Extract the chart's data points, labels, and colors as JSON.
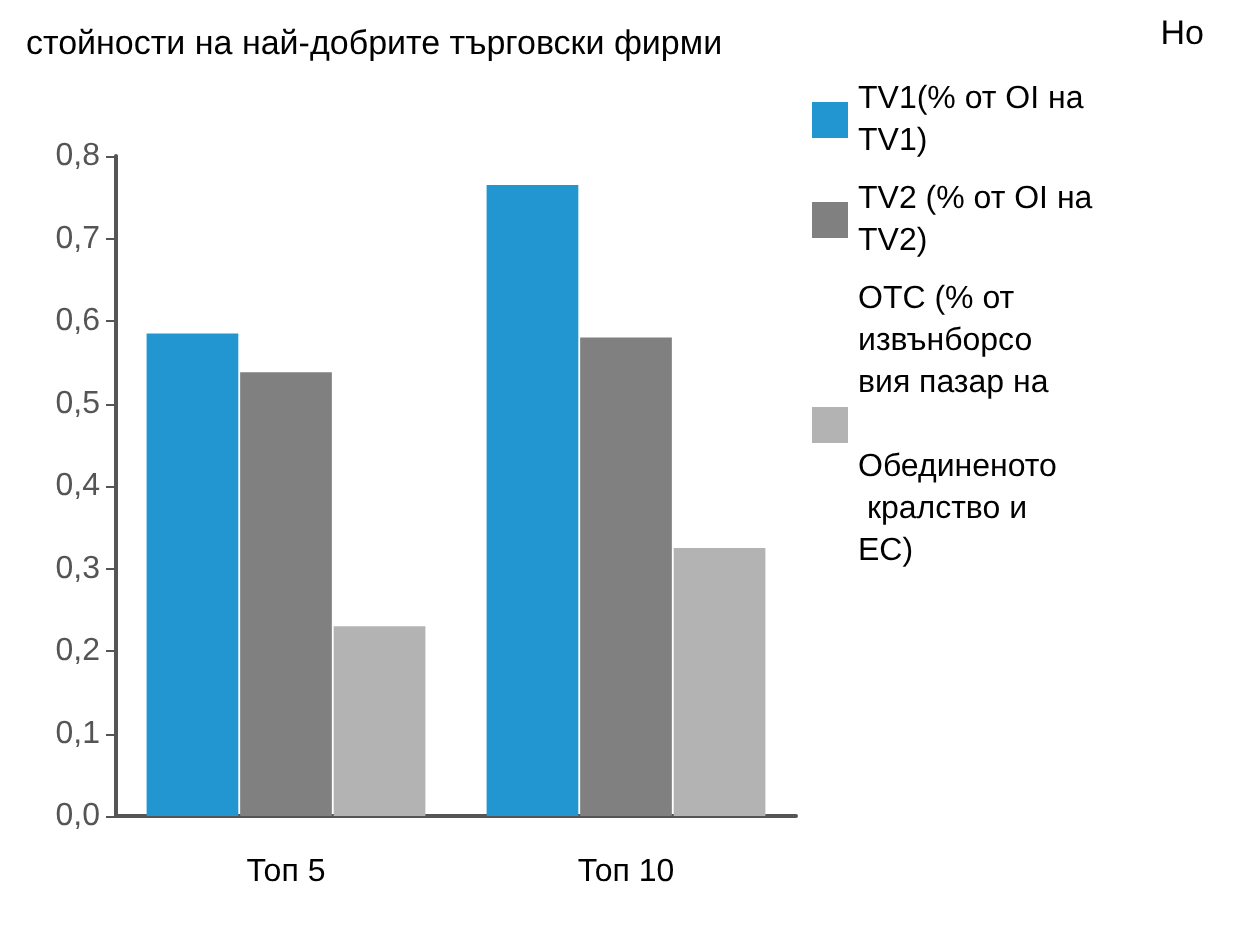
{
  "chart_data": {
    "type": "bar",
    "title": "стойности на най-добрите търговски фирми",
    "annotations": [
      "Но"
    ],
    "categories": [
      "Топ 5",
      "Топ 10"
    ],
    "series": [
      {
        "name": "TV1(% от OI на TV1)",
        "color": "#2196d0",
        "values": [
          0.585,
          0.765
        ]
      },
      {
        "name": "TV2 (% от OI на TV2)",
        "color": "#808080",
        "values": [
          0.538,
          0.58
        ]
      },
      {
        "name": "OTC (% от извънборсовия пазар на Обединеното кралство и ЕС)",
        "color": "#b3b3b3",
        "values": [
          0.23,
          0.325
        ]
      }
    ],
    "ylim": [
      0,
      0.8
    ],
    "yticks": [
      {
        "value": 0,
        "label": "0,0"
      },
      {
        "value": 0.1,
        "label": "0,1"
      },
      {
        "value": 0.2,
        "label": "0,2"
      },
      {
        "value": 0.3,
        "label": "0,3"
      },
      {
        "value": 0.4,
        "label": "0,4"
      },
      {
        "value": 0.5,
        "label": "0,5"
      },
      {
        "value": 0.6,
        "label": "0,6"
      },
      {
        "value": 0.7,
        "label": "0,7"
      },
      {
        "value": 0.8,
        "label": "0,8"
      }
    ],
    "grid": false,
    "legend": "top right"
  }
}
